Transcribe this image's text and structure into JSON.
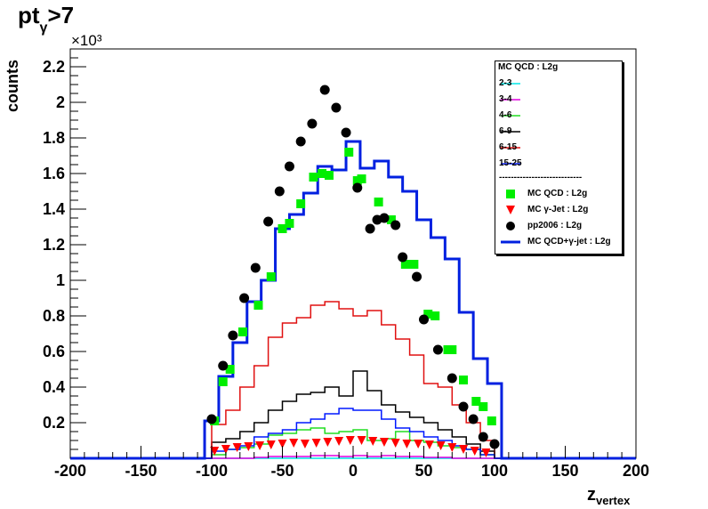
{
  "title": {
    "main": "pt",
    "sub": "γ",
    "tail": ">7"
  },
  "multiplier": "×10³",
  "chart_data": {
    "type": "histogram",
    "xlabel": "z",
    "xlabel_sub": "vertex",
    "ylabel": "counts",
    "xlim": [
      -200,
      200
    ],
    "ylim": [
      0,
      2.3
    ],
    "y_scale_multiplier": 1000,
    "x_ticks": [
      -200,
      -150,
      -100,
      -50,
      0,
      50,
      100,
      150,
      200
    ],
    "y_ticks": [
      0.2,
      0.4,
      0.6,
      0.8,
      1,
      1.2,
      1.4,
      1.6,
      1.8,
      2,
      2.2
    ],
    "bin_width": 10,
    "bin_centers": [
      -95,
      -85,
      -75,
      -65,
      -55,
      -45,
      -35,
      -25,
      -15,
      -5,
      5,
      15,
      25,
      35,
      45,
      55,
      65,
      75,
      85,
      95
    ],
    "bin_centers_fine": [
      -100,
      -90,
      -80,
      -70,
      -60,
      -50,
      -40,
      -30,
      -20,
      -10,
      0,
      10,
      20,
      30,
      40,
      50,
      60,
      70,
      80,
      90,
      100
    ],
    "series": [
      {
        "name": "2-3",
        "style": "step",
        "color": "#00e5e5",
        "values": [
          0,
          0,
          0,
          0,
          0,
          0,
          0,
          0,
          0,
          0,
          0,
          0,
          0,
          0,
          0,
          0,
          0,
          0,
          0,
          0
        ]
      },
      {
        "name": "3-4",
        "style": "step",
        "color": "#e000e0",
        "values": [
          0,
          0,
          0,
          0.005,
          0.01,
          0.01,
          0.01,
          0.015,
          0.015,
          0.01,
          0.015,
          0.01,
          0.015,
          0.01,
          0.01,
          0.005,
          0.005,
          0,
          0,
          0
        ]
      },
      {
        "name": "4-6",
        "style": "step",
        "color": "#22dd22",
        "values": [
          0.02,
          0.05,
          0.06,
          0.08,
          0.13,
          0.14,
          0.16,
          0.17,
          0.14,
          0.15,
          0.16,
          0.1,
          0.11,
          0.15,
          0.1,
          0.09,
          0.07,
          0.06,
          0.05,
          0.02
        ]
      },
      {
        "name": "6-9",
        "style": "step",
        "color": "#000000",
        "values": [
          0.09,
          0.11,
          0.15,
          0.2,
          0.27,
          0.32,
          0.36,
          0.37,
          0.4,
          0.35,
          0.49,
          0.38,
          0.3,
          0.26,
          0.23,
          0.2,
          0.16,
          0.12,
          0.08,
          0.04
        ]
      },
      {
        "name": "6-15",
        "style": "step",
        "color": "#e01010",
        "values": [
          0.19,
          0.27,
          0.4,
          0.52,
          0.68,
          0.76,
          0.79,
          0.86,
          0.88,
          0.84,
          0.8,
          0.83,
          0.75,
          0.67,
          0.58,
          0.42,
          0.4,
          0.3,
          0.2,
          0.1
        ]
      },
      {
        "name": "15-25",
        "style": "step",
        "color": "#0018ff",
        "values": [
          0.04,
          0.05,
          0.07,
          0.12,
          0.14,
          0.16,
          0.2,
          0.22,
          0.25,
          0.28,
          0.27,
          0.27,
          0.22,
          0.17,
          0.15,
          0.12,
          0.1,
          0.07,
          0.05,
          0.02
        ]
      },
      {
        "name": "MC QCD : L2g",
        "style": "square",
        "color": "#00ee00",
        "values": [
          0.21,
          0.43,
          0.5,
          0.71,
          0.86,
          1.02,
          1.29,
          1.32,
          1.43,
          1.58,
          1.6,
          1.59,
          1.72,
          1.56,
          1.57,
          1.44,
          1.34,
          1.09,
          1.09,
          0.81,
          0.8,
          0.61,
          0.61,
          0.44,
          0.32,
          0.29,
          0.21
        ],
        "x": [
          -98,
          -92,
          -87,
          -78,
          -67,
          -58,
          -50,
          -45,
          -37,
          -28,
          -22,
          -17,
          -3,
          3,
          6,
          18,
          27,
          37,
          43,
          53,
          58,
          67,
          70,
          78,
          87,
          92,
          98
        ]
      },
      {
        "name": "MC γ-Jet : L2g",
        "style": "triangle",
        "color": "#ff0000",
        "x": [
          -98,
          -90,
          -82,
          -74,
          -66,
          -58,
          -50,
          -42,
          -34,
          -26,
          -18,
          -10,
          -2,
          6,
          14,
          22,
          30,
          38,
          46,
          54,
          62,
          70,
          78,
          86,
          94
        ],
        "values": [
          0.04,
          0.05,
          0.06,
          0.065,
          0.07,
          0.075,
          0.08,
          0.085,
          0.08,
          0.085,
          0.09,
          0.095,
          0.1,
          0.1,
          0.095,
          0.09,
          0.085,
          0.08,
          0.08,
          0.075,
          0.07,
          0.06,
          0.05,
          0.04,
          0.03
        ]
      },
      {
        "name": "pp2006 : L2g",
        "style": "circle",
        "color": "#000000",
        "x": [
          -100,
          -92,
          -85,
          -77,
          -69,
          -60,
          -52,
          -45,
          -37,
          -29,
          -20,
          -12,
          -5,
          3,
          12,
          17,
          22,
          30,
          35,
          45,
          50,
          60,
          70,
          78,
          85,
          92,
          100
        ],
        "values": [
          0.22,
          0.52,
          0.69,
          0.9,
          1.07,
          1.33,
          1.5,
          1.64,
          1.78,
          1.88,
          2.07,
          1.97,
          1.83,
          1.52,
          1.29,
          1.34,
          1.35,
          1.31,
          1.13,
          1.02,
          0.78,
          0.61,
          0.45,
          0.29,
          0.22,
          0.12,
          0.08
        ]
      },
      {
        "name": "MC QCD+γ-jet : L2g",
        "style": "step-thick",
        "color": "#0020e0",
        "values": [
          0.21,
          0.46,
          0.65,
          0.88,
          1.0,
          1.29,
          1.37,
          1.49,
          1.64,
          1.62,
          1.78,
          1.63,
          1.67,
          1.58,
          1.5,
          1.34,
          1.24,
          1.12,
          0.82,
          0.56,
          0.42
        ]
      }
    ]
  },
  "legend": {
    "header": "MC QCD : L2g",
    "dashes": "----------------------------",
    "items": [
      "2-3",
      "3-4",
      "4-6",
      "6-9",
      "6-15",
      "15-25"
    ],
    "markers": [
      "MC QCD : L2g",
      "MC γ-Jet : L2g",
      "pp2006 : L2g",
      "MC QCD+γ-jet : L2g"
    ]
  }
}
